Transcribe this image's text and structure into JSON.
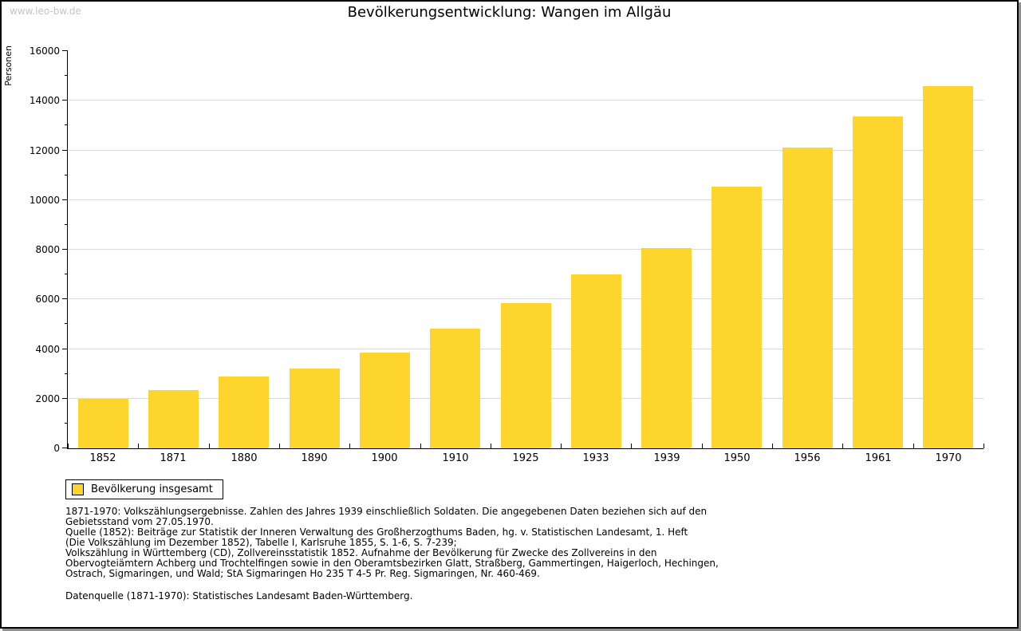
{
  "page": {
    "watermark": "www.leo-bw.de"
  },
  "chart_data": {
    "type": "bar",
    "title": "Bevölkerungsentwicklung: Wangen im Allgäu",
    "xlabel": "",
    "ylabel": "Personen",
    "categories": [
      "1852",
      "1871",
      "1880",
      "1890",
      "1900",
      "1910",
      "1925",
      "1933",
      "1939",
      "1950",
      "1956",
      "1961",
      "1970"
    ],
    "series": [
      {
        "name": "Bevölkerung insgesamt",
        "values": [
          2000,
          2350,
          2880,
          3200,
          3850,
          4830,
          5850,
          7000,
          8080,
          10550,
          12100,
          13350,
          14600
        ]
      }
    ],
    "ylim": [
      0,
      16000
    ],
    "ytick_interval": 2000,
    "yminor_interval": 1000,
    "grid": true,
    "legend_position": "bottom-left",
    "bar_color": "#fdd52d",
    "gridline_color": "#d9d9d9",
    "axis_color": "#000000"
  },
  "legend": {
    "items": [
      {
        "label": "Bevölkerung insgesamt",
        "color": "#fdd52d"
      }
    ]
  },
  "footnotes": {
    "lines": [
      "1871-1970: Volkszählungsergebnisse. Zahlen des Jahres 1939 einschließlich Soldaten. Die angegebenen Daten beziehen sich auf den",
      "Gebietsstand vom 27.05.1970.",
      "Quelle (1852): Beiträge zur Statistik der Inneren Verwaltung des Großherzogthums Baden, hg. v. Statistischen Landesamt, 1. Heft",
      "(Die Volkszählung im Dezember 1852), Tabelle I, Karlsruhe 1855, S. 1-6, S. 7-239;",
      "Volkszählung in Württemberg (CD), Zollvereinsstatistik 1852. Aufnahme der Bevölkerung für Zwecke des Zollvereins in den",
      "Obervogteiämtern Achberg und Trochtelfingen sowie in den Oberamtsbezirken Glatt, Straßberg, Gammertingen, Haigerloch, Hechingen,",
      "Ostrach, Sigmaringen, und Wald; StA Sigmaringen Ho 235 T 4-5 Pr. Reg. Sigmaringen, Nr. 460-469."
    ],
    "datasource": "Datenquelle (1871-1970): Statistisches Landesamt Baden-Württemberg."
  }
}
